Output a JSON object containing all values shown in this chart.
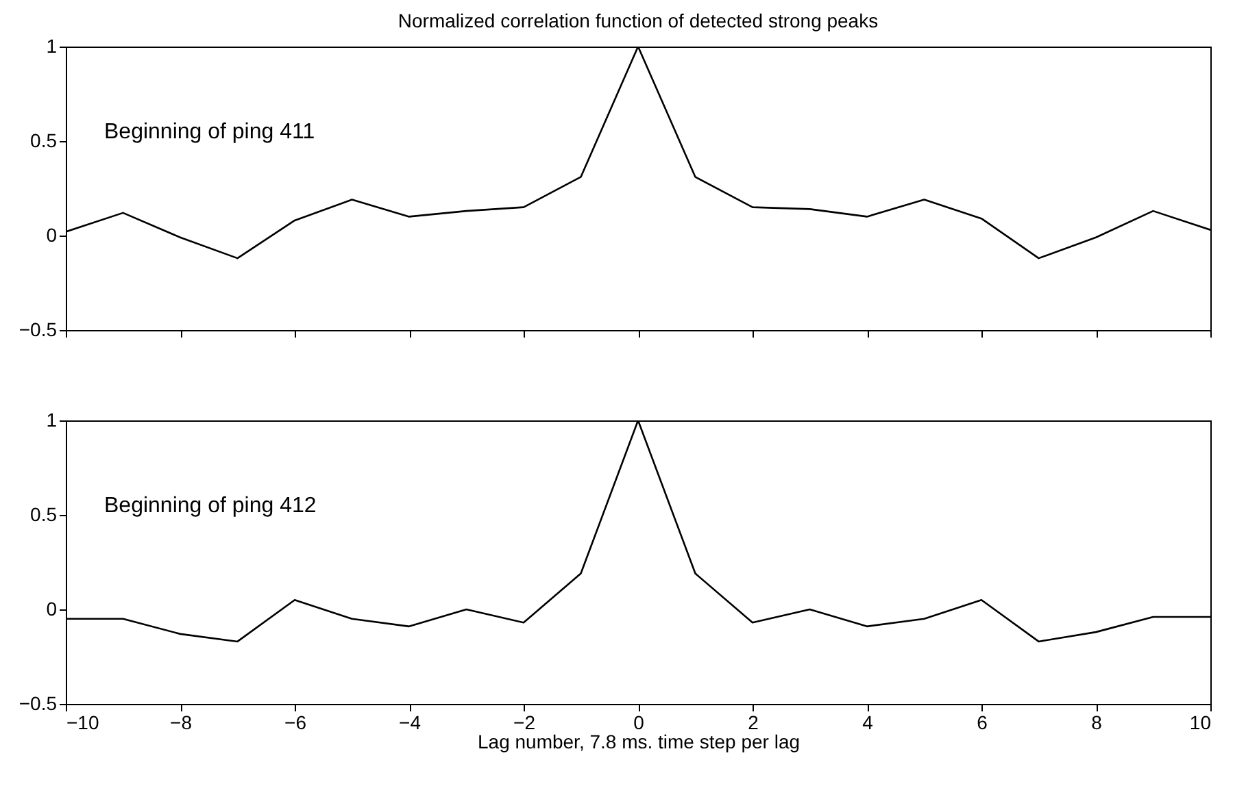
{
  "chart_data": [
    {
      "type": "line",
      "title": "Normalized correlation function of detected strong peaks",
      "x": [
        -10,
        -9,
        -8,
        -7,
        -6,
        -5,
        -4,
        -3,
        -2,
        -1,
        0,
        1,
        2,
        3,
        4,
        5,
        6,
        7,
        8,
        9,
        10
      ],
      "series": [
        {
          "color": "#000000",
          "values": [
            0.02,
            0.12,
            -0.01,
            -0.12,
            0.08,
            0.19,
            0.1,
            0.13,
            0.15,
            0.31,
            1,
            0.31,
            0.15,
            0.14,
            0.1,
            0.19,
            0.09,
            -0.12,
            -0.01,
            0.13,
            0.03
          ]
        }
      ],
      "xlim": [
        -10,
        10
      ],
      "xticks": [
        -10,
        -8,
        -6,
        -4,
        -2,
        0,
        2,
        4,
        6,
        8,
        10
      ],
      "ylim": [
        -0.5,
        1
      ],
      "yticks": [
        -0.5,
        0,
        0.5,
        1
      ],
      "tick_labels": "y",
      "grid": false,
      "marker": "none",
      "line_style": "solid",
      "annotations": [
        "Beginning of ping 411"
      ]
    },
    {
      "type": "line",
      "xlabel": "Lag number, 7.8 ms. time step per lag",
      "x": [
        -10,
        -9,
        -8,
        -7,
        -6,
        -5,
        -4,
        -3,
        -2,
        -1,
        0,
        1,
        2,
        3,
        4,
        5,
        6,
        7,
        8,
        9,
        10
      ],
      "series": [
        {
          "color": "#000000",
          "values": [
            -0.05,
            -0.05,
            -0.13,
            -0.17,
            0.05,
            -0.05,
            -0.09,
            0,
            -0.07,
            0.19,
            1,
            0.19,
            -0.07,
            0,
            -0.09,
            -0.05,
            0.05,
            -0.17,
            -0.12,
            -0.04,
            -0.04
          ]
        }
      ],
      "xlim": [
        -10,
        10
      ],
      "xticks": [
        -10,
        -8,
        -6,
        -4,
        -2,
        0,
        2,
        4,
        6,
        8,
        10
      ],
      "ylim": [
        -0.5,
        1
      ],
      "yticks": [
        -0.5,
        0,
        0.5,
        1
      ],
      "grid": false,
      "marker": "none",
      "line_style": "solid",
      "annotations": [
        "Beginning of ping 412"
      ]
    }
  ]
}
